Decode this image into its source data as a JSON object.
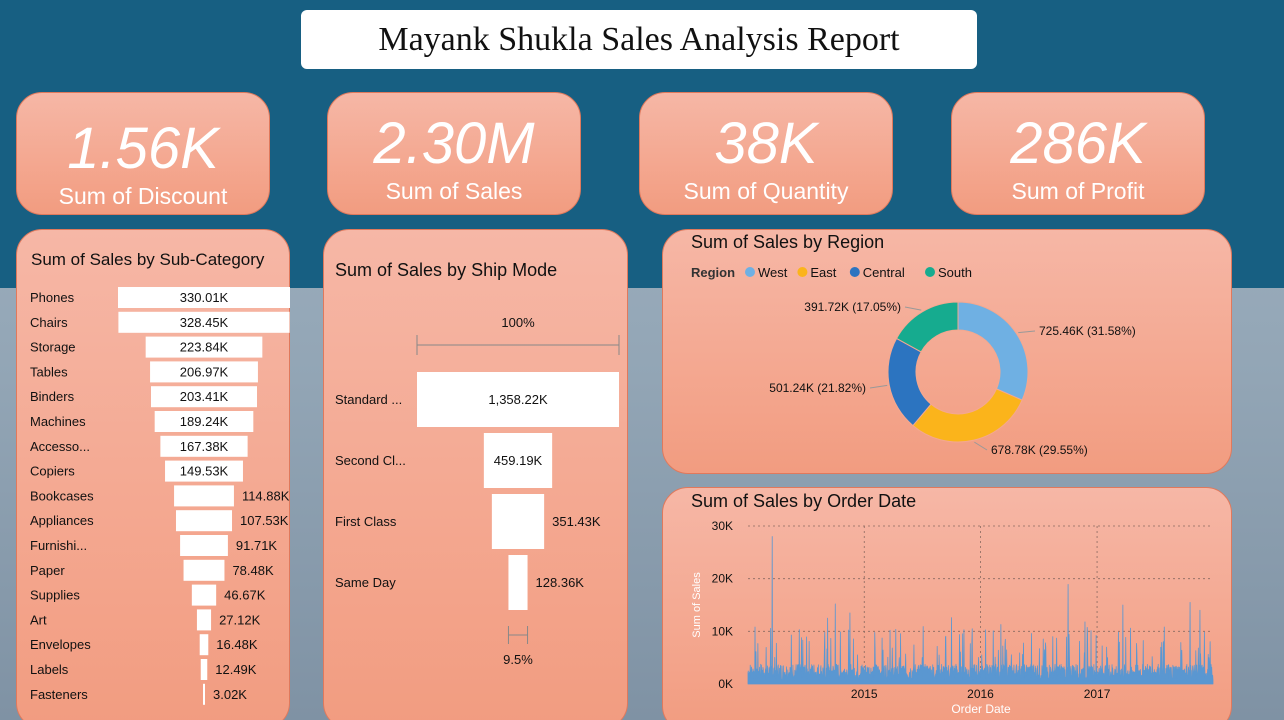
{
  "report": {
    "title": "Mayank Shukla Sales Analysis Report"
  },
  "kpis": [
    {
      "value": "1.56K",
      "label": "Sum of Discount"
    },
    {
      "value": "2.30M",
      "label": "Sum of Sales"
    },
    {
      "value": "38K",
      "label": "Sum of Quantity"
    },
    {
      "value": "286K",
      "label": "Sum of Profit"
    }
  ],
  "colors": {
    "top_band": "#175f82",
    "card": "#f4a88f",
    "west": "#6fb0e3",
    "east": "#fbb41b",
    "central": "#2c74c0",
    "south": "#16ab8f",
    "line": "#5a97d1"
  },
  "chart_data": [
    {
      "type": "bar",
      "orientation": "funnel",
      "title": "Sum of Sales by Sub-Category",
      "categories": [
        "Phones",
        "Chairs",
        "Storage",
        "Tables",
        "Binders",
        "Machines",
        "Accesso...",
        "Copiers",
        "Bookcases",
        "Appliances",
        "Furnishi...",
        "Paper",
        "Supplies",
        "Art",
        "Envelopes",
        "Labels",
        "Fasteners"
      ],
      "values": [
        330.01,
        328.45,
        223.84,
        206.97,
        203.41,
        189.24,
        167.38,
        149.53,
        114.88,
        107.53,
        91.71,
        78.48,
        46.67,
        27.12,
        16.48,
        12.49,
        3.02
      ],
      "labels": [
        "330.01K",
        "328.45K",
        "223.84K",
        "206.97K",
        "203.41K",
        "189.24K",
        "167.38K",
        "149.53K",
        "114.88K",
        "107.53K",
        "91.71K",
        "78.48K",
        "46.67K",
        "27.12K",
        "16.48K",
        "12.49K",
        "3.02K"
      ]
    },
    {
      "type": "bar",
      "orientation": "funnel",
      "title": "Sum of Sales by Ship Mode",
      "categories": [
        "Standard ...",
        "Second Cl...",
        "First Class",
        "Same Day"
      ],
      "values": [
        1358.22,
        459.19,
        351.43,
        128.36
      ],
      "labels": [
        "1,358.22K",
        "459.19K",
        "351.43K",
        "128.36K"
      ],
      "top_percent": "100%",
      "bottom_percent": "9.5%"
    },
    {
      "type": "pie",
      "style": "donut",
      "title": "Sum of Sales by Region",
      "legend_title": "Region",
      "legend_position": "top-left",
      "slices": [
        {
          "name": "West",
          "value": 725.46,
          "label": "725.46K (31.58%)"
        },
        {
          "name": "East",
          "value": 678.78,
          "label": "678.78K (29.55%)"
        },
        {
          "name": "Central",
          "value": 501.24,
          "label": "501.24K (21.82%)"
        },
        {
          "name": "South",
          "value": 391.72,
          "label": "391.72K (17.05%)"
        }
      ]
    },
    {
      "type": "area",
      "title": "Sum of Sales by Order Date",
      "xlabel": "Order Date",
      "ylabel": "Sum of Sales",
      "x_range": [
        "2014-01-01",
        "2017-12-31"
      ],
      "ylim": [
        0,
        30000
      ],
      "yticks": [
        0,
        10000,
        20000,
        30000
      ],
      "ytick_labels": [
        "0K",
        "10K",
        "20K",
        "30K"
      ],
      "xtick_labels": [
        "2015",
        "2016",
        "2017"
      ],
      "grid": true,
      "peaks": [
        {
          "date": "2014-03-18",
          "value": 28000
        },
        {
          "date": "2014-09-08",
          "value": 12500
        },
        {
          "date": "2014-10-02",
          "value": 15200
        },
        {
          "date": "2014-11-17",
          "value": 13500
        },
        {
          "date": "2015-03-23",
          "value": 10200
        },
        {
          "date": "2015-10-02",
          "value": 12600
        },
        {
          "date": "2015-11-10",
          "value": 10300
        },
        {
          "date": "2016-03-05",
          "value": 11300
        },
        {
          "date": "2016-10-02",
          "value": 18900
        },
        {
          "date": "2016-11-24",
          "value": 11800
        },
        {
          "date": "2017-03-23",
          "value": 15000
        },
        {
          "date": "2017-10-20",
          "value": 15500
        },
        {
          "date": "2017-11-20",
          "value": 14000
        }
      ],
      "baseline": 2500
    }
  ]
}
